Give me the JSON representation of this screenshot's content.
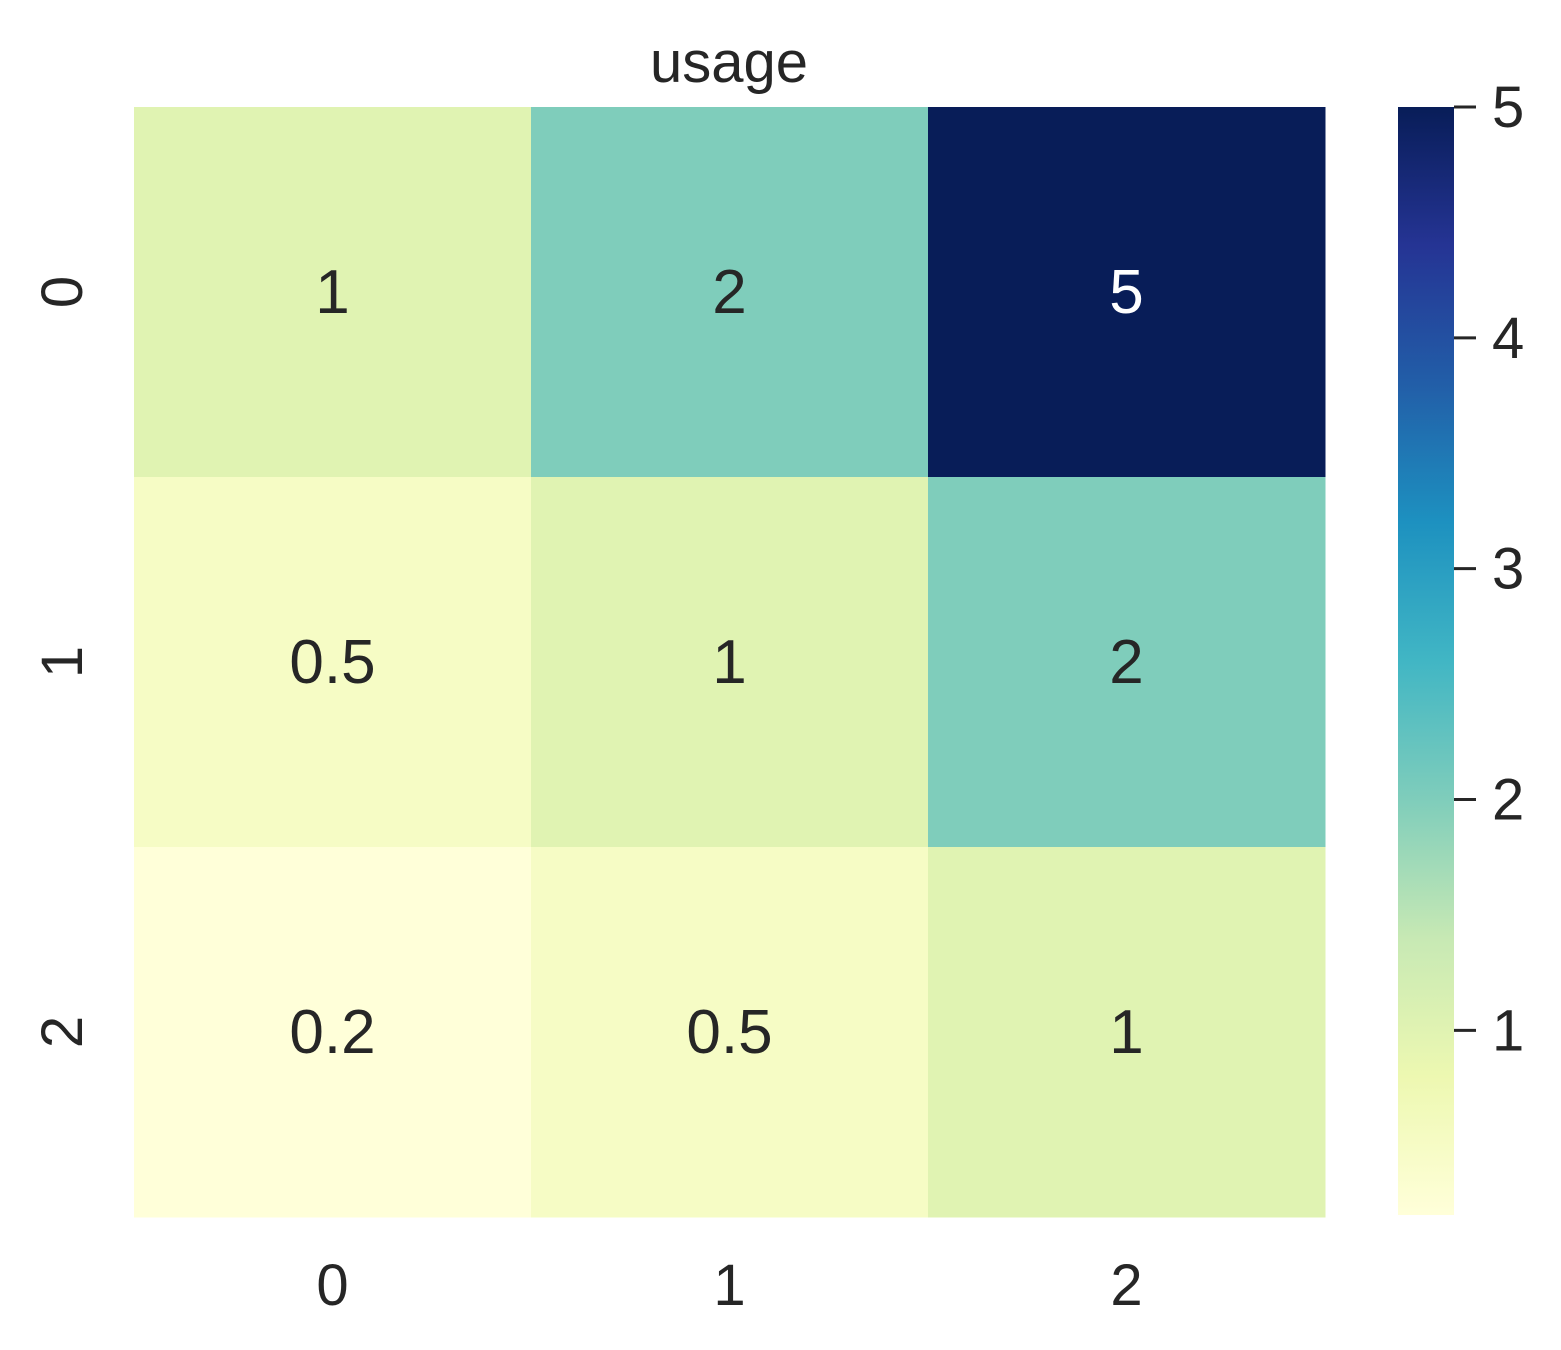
{
  "chart_data": {
    "type": "heatmap",
    "title": "usage",
    "xlabel": "",
    "ylabel": "",
    "x_categories": [
      "0",
      "1",
      "2"
    ],
    "y_categories": [
      "0",
      "1",
      "2"
    ],
    "values": [
      [
        1,
        2,
        5
      ],
      [
        0.5,
        1,
        2
      ],
      [
        0.2,
        0.5,
        1
      ]
    ],
    "annotations": [
      [
        "1",
        "2",
        "5"
      ],
      [
        "0.5",
        "1",
        "2"
      ],
      [
        "0.2",
        "0.5",
        "1"
      ]
    ],
    "colorbar": {
      "range": [
        0.2,
        5
      ],
      "ticks": [
        1,
        2,
        3,
        4,
        5
      ],
      "tick_labels": [
        "1",
        "2",
        "3",
        "4",
        "5"
      ],
      "colormap": "YlGnBu",
      "stops": [
        [
          0.0,
          "#ffffd9"
        ],
        [
          0.125,
          "#edf8b1"
        ],
        [
          0.25,
          "#c7e9b4"
        ],
        [
          0.375,
          "#7fcdbb"
        ],
        [
          0.5,
          "#41b6c4"
        ],
        [
          0.625,
          "#1d91c0"
        ],
        [
          0.75,
          "#225ea8"
        ],
        [
          0.875,
          "#253494"
        ],
        [
          1.0,
          "#081d58"
        ]
      ]
    },
    "grid": false,
    "legend": "colorbar-right"
  }
}
